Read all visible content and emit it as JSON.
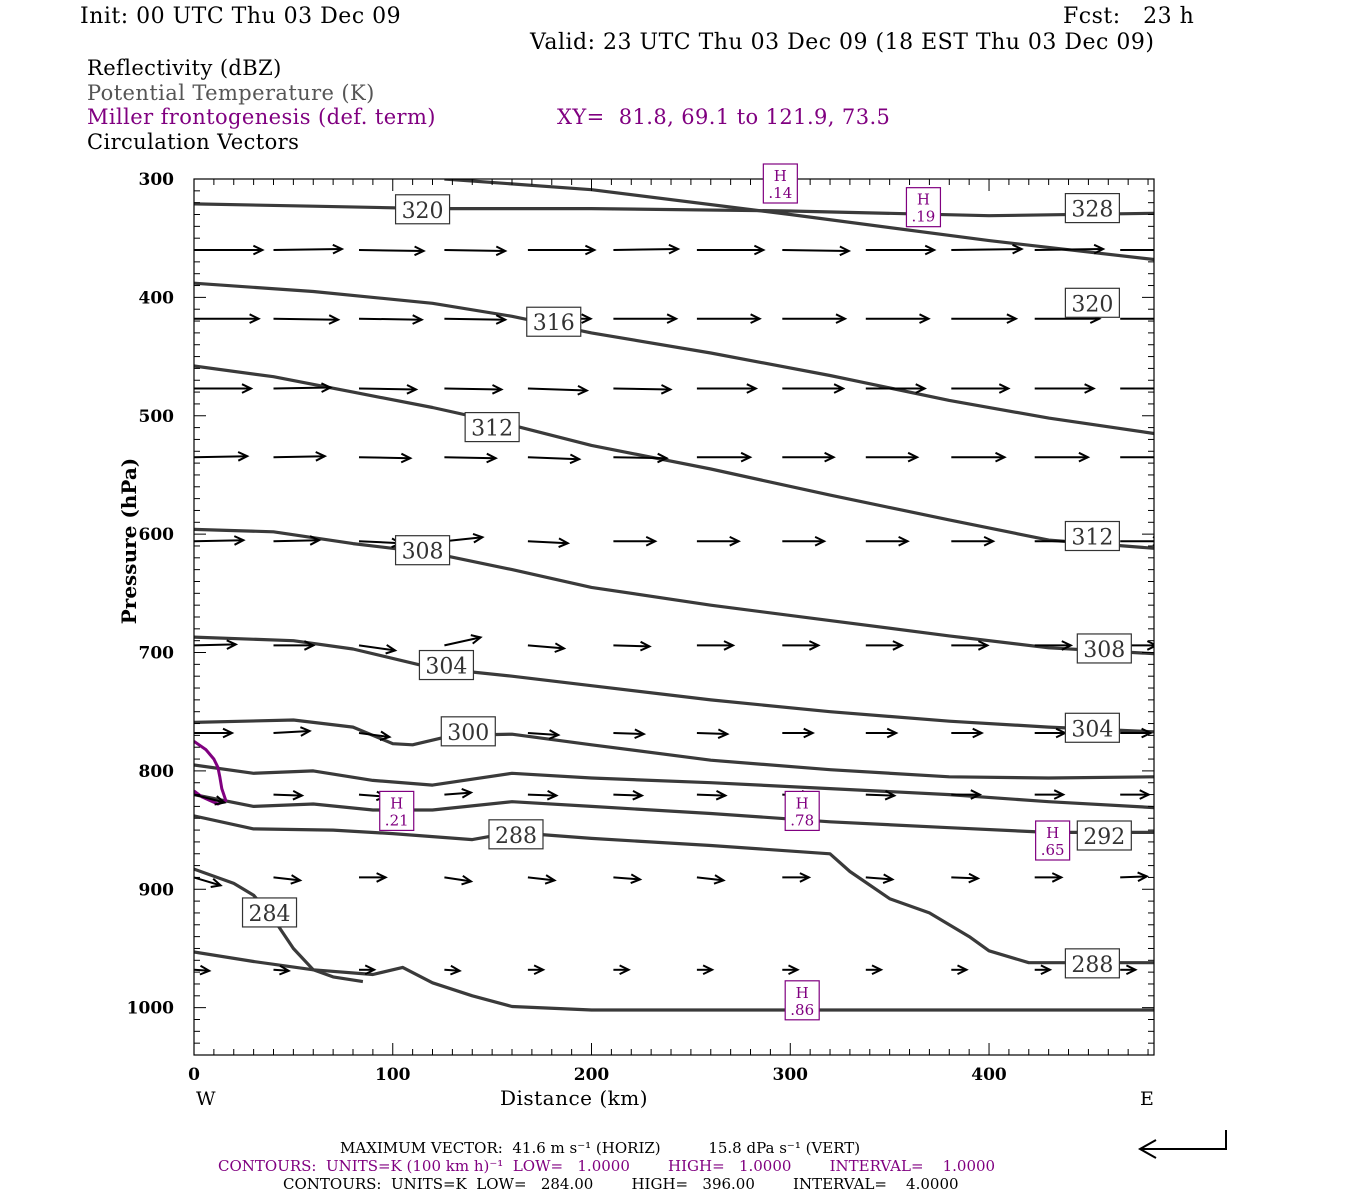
{
  "header": {
    "init": "Init: 00 UTC Thu 03 Dec 09",
    "fcst": "Fcst:   23 h",
    "valid": "Valid: 23 UTC Thu 03 Dec 09 (18 EST Thu 03 Dec 09)"
  },
  "fields": {
    "reflectivity": "Reflectivity (dBZ)",
    "potential_temperature": "Potential Temperature (K)",
    "frontogenesis": "Miller frontogenesis (def. term)",
    "xy": "XY=  81.8, 69.1 to 121.9, 73.5",
    "circulation": "Circulation Vectors"
  },
  "footer": {
    "max_vector": "MAXIMUM VECTOR:  41.6 m s⁻¹ (HORIZ)          15.8 dPa s⁻¹ (VERT)",
    "contours_fronto": "CONTOURS:  UNITS=K (100 km h)⁻¹  LOW=   1.0000        HIGH=   1.0000        INTERVAL=    1.0000",
    "contours_theta": "CONTOURS:  UNITS=K  LOW=   284.00        HIGH=   396.00        INTERVAL=    4.0000"
  },
  "colors": {
    "theta": "#3a3a3a",
    "fronto": "#800080",
    "vectors": "#000000",
    "field_potential": "#555555"
  },
  "chart_data": {
    "type": "line",
    "title": "",
    "xlabel": "Distance (km)",
    "ylabel": "Pressure (hPa)",
    "xlim": [
      0,
      483
    ],
    "ylim": [
      1040,
      300
    ],
    "x_ticks": [
      0,
      100,
      200,
      300,
      400
    ],
    "y_ticks": [
      300,
      400,
      500,
      600,
      700,
      800,
      900,
      1000
    ],
    "x_end_labels": [
      "W",
      "E"
    ],
    "theta_labels": [
      {
        "text": "320",
        "x": 115,
        "y": 326
      },
      {
        "text": "328",
        "x": 452,
        "y": 325
      },
      {
        "text": "320",
        "x": 452,
        "y": 405
      },
      {
        "text": "316",
        "x": 181,
        "y": 421
      },
      {
        "text": "312",
        "x": 150,
        "y": 510
      },
      {
        "text": "312",
        "x": 452,
        "y": 602
      },
      {
        "text": "308",
        "x": 115,
        "y": 614
      },
      {
        "text": "308",
        "x": 458,
        "y": 697
      },
      {
        "text": "304",
        "x": 127,
        "y": 711
      },
      {
        "text": "304",
        "x": 452,
        "y": 764
      },
      {
        "text": "300",
        "x": 138,
        "y": 767
      },
      {
        "text": "288",
        "x": 162,
        "y": 854
      },
      {
        "text": "292",
        "x": 458,
        "y": 855
      },
      {
        "text": "284",
        "x": 38,
        "y": 920
      },
      {
        "text": "288",
        "x": 452,
        "y": 963
      }
    ],
    "theta_contours": [
      {
        "x": [
          126,
          200,
          300,
          400,
          483
        ],
        "y": [
          300,
          309,
          330,
          352,
          368
        ]
      },
      {
        "x": [
          0,
          60,
          120,
          200,
          300,
          400,
          483
        ],
        "y": [
          321,
          323,
          325,
          325,
          327,
          331,
          329
        ]
      },
      {
        "x": [
          0,
          60,
          120,
          160,
          200,
          260,
          320,
          380,
          430,
          483
        ],
        "y": [
          388,
          395,
          405,
          416,
          430,
          447,
          466,
          487,
          502,
          515
        ]
      },
      {
        "x": [
          0,
          40,
          80,
          120,
          160,
          200,
          260,
          320,
          380,
          430,
          483
        ],
        "y": [
          458,
          467,
          480,
          493,
          508,
          525,
          545,
          567,
          588,
          605,
          612
        ]
      },
      {
        "x": [
          0,
          40,
          80,
          120,
          160,
          200,
          260,
          320,
          380,
          430,
          483
        ],
        "y": [
          596,
          598,
          608,
          616,
          630,
          645,
          660,
          673,
          686,
          696,
          701
        ]
      },
      {
        "x": [
          0,
          50,
          80,
          120,
          160,
          200,
          260,
          320,
          380,
          430,
          483
        ],
        "y": [
          687,
          690,
          697,
          713,
          720,
          728,
          740,
          750,
          758,
          763,
          767
        ]
      },
      {
        "x": [
          0,
          50,
          80,
          100,
          110,
          130,
          160,
          200,
          260,
          320,
          380,
          430,
          483
        ],
        "y": [
          759,
          757,
          763,
          777,
          778,
          770,
          769,
          778,
          791,
          799,
          805,
          806,
          805
        ]
      },
      {
        "x": [
          0,
          30,
          60,
          90,
          120,
          160,
          200,
          260,
          320,
          380,
          430,
          483
        ],
        "y": [
          795,
          802,
          800,
          808,
          812,
          802,
          806,
          810,
          815,
          820,
          826,
          831
        ]
      },
      {
        "x": [
          0,
          30,
          60,
          90,
          120,
          160,
          200,
          260,
          320,
          380,
          430,
          483
        ],
        "y": [
          820,
          830,
          828,
          833,
          833,
          826,
          830,
          836,
          843,
          848,
          852,
          852
        ]
      },
      {
        "x": [
          0,
          30,
          70,
          100,
          140,
          160,
          200,
          260,
          320,
          330,
          350,
          370,
          390,
          400,
          420,
          483
        ],
        "y": [
          838,
          849,
          850,
          853,
          858,
          852,
          857,
          863,
          870,
          885,
          908,
          920,
          940,
          952,
          962,
          962
        ]
      },
      {
        "x": [
          0,
          20,
          30,
          40,
          50,
          60,
          70,
          85
        ],
        "y": [
          883,
          895,
          905,
          925,
          950,
          968,
          974,
          978
        ]
      },
      {
        "x": [
          0,
          30,
          60,
          90,
          105,
          120,
          140,
          160,
          200,
          300,
          400,
          483
        ],
        "y": [
          953,
          961,
          968,
          972,
          966,
          979,
          990,
          999,
          1002,
          1002,
          1002,
          1002
        ]
      }
    ],
    "fronto_contour": {
      "x": [
        0,
        6,
        10,
        12,
        13,
        14,
        16,
        12,
        8,
        4,
        0
      ],
      "y": [
        775,
        782,
        790,
        797,
        805,
        815,
        825,
        828,
        825,
        822,
        817
      ]
    },
    "fronto_labels": [
      {
        "text": "H",
        "value": ".14",
        "x": 295,
        "y": 300
      },
      {
        "text": "H",
        "value": ".19",
        "x": 367,
        "y": 320
      },
      {
        "text": "H",
        "value": ".21",
        "x": 102,
        "y": 830
      },
      {
        "text": "H",
        "value": ".78",
        "x": 306,
        "y": 830
      },
      {
        "text": "H",
        "value": ".65",
        "x": 432,
        "y": 855
      },
      {
        "text": "H",
        "value": ".86",
        "x": 306,
        "y": 990
      }
    ],
    "vectors": [
      {
        "y": 360,
        "x": [
          0,
          40,
          83,
          126,
          168,
          211,
          253,
          296,
          338,
          381,
          423,
          466
        ],
        "u": [
          36,
          36,
          34,
          32,
          35,
          34,
          35,
          35,
          36,
          37,
          36,
          35
        ],
        "v": [
          0,
          -1,
          1,
          1,
          0,
          -1,
          0,
          1,
          0,
          -1,
          -1,
          0
        ]
      },
      {
        "y": 418,
        "x": [
          0,
          40,
          83,
          126,
          168,
          211,
          253,
          296,
          338,
          381,
          423,
          466
        ],
        "u": [
          34,
          34,
          33,
          32,
          33,
          33,
          33,
          33,
          33,
          34,
          34,
          32
        ],
        "v": [
          0,
          1,
          1,
          1,
          0,
          0,
          0,
          0,
          0,
          0,
          0,
          0
        ]
      },
      {
        "y": 477,
        "x": [
          0,
          40,
          83,
          126,
          168,
          211,
          253,
          296,
          338,
          381,
          423,
          466
        ],
        "u": [
          30,
          30,
          30,
          30,
          31,
          30,
          31,
          32,
          31,
          30,
          31,
          30
        ],
        "v": [
          0,
          -1,
          1,
          1,
          2,
          1,
          0,
          0,
          0,
          0,
          0,
          0
        ]
      },
      {
        "y": 535,
        "x": [
          0,
          40,
          83,
          126,
          168,
          211,
          253,
          296,
          338,
          381,
          423,
          466
        ],
        "u": [
          28,
          27,
          27,
          27,
          27,
          28,
          28,
          27,
          27,
          28,
          28,
          28
        ],
        "v": [
          -1,
          -1,
          1,
          1,
          2,
          1,
          0,
          0,
          0,
          0,
          0,
          0
        ]
      },
      {
        "y": 606,
        "x": [
          0,
          40,
          83,
          126,
          168,
          211,
          253,
          296,
          338,
          381,
          423,
          466
        ],
        "u": [
          26,
          24,
          22,
          20,
          21,
          22,
          22,
          22,
          22,
          22,
          22,
          22
        ],
        "v": [
          -1,
          -1,
          2,
          -4,
          2,
          0,
          0,
          0,
          0,
          0,
          0,
          0
        ]
      },
      {
        "y": 694,
        "x": [
          0,
          40,
          83,
          126,
          168,
          211,
          253,
          296,
          338,
          381,
          423,
          466
        ],
        "u": [
          22,
          21,
          19,
          19,
          19,
          19,
          19,
          19,
          19,
          19,
          19,
          19
        ],
        "v": [
          -1,
          0,
          5,
          -8,
          3,
          1,
          0,
          0,
          0,
          0,
          0,
          0
        ]
      },
      {
        "y": 768,
        "x": [
          0,
          40,
          83,
          126,
          168,
          211,
          253,
          296,
          338,
          381,
          423,
          466
        ],
        "u": [
          20,
          19,
          16,
          16,
          16,
          16,
          16,
          16,
          16,
          16,
          16,
          16
        ],
        "v": [
          0,
          -2,
          4,
          -5,
          2,
          1,
          1,
          0,
          0,
          0,
          0,
          0
        ]
      },
      {
        "y": 820,
        "x": [
          0,
          40,
          83,
          126,
          168,
          211,
          253,
          296,
          338,
          381,
          423,
          466
        ],
        "u": [
          16,
          15,
          14,
          14,
          15,
          15,
          15,
          15,
          15,
          15,
          15,
          15
        ],
        "v": [
          8,
          1,
          2,
          -2,
          1,
          1,
          1,
          1,
          1,
          0,
          0,
          0
        ]
      },
      {
        "y": 890,
        "x": [
          0,
          40,
          83,
          126,
          168,
          211,
          253,
          296,
          338,
          381,
          423,
          466
        ],
        "u": [
          14,
          14,
          14,
          14,
          14,
          14,
          14,
          14,
          14,
          14,
          14,
          14
        ],
        "v": [
          8,
          3,
          0,
          4,
          3,
          2,
          3,
          0,
          2,
          1,
          0,
          -1
        ]
      },
      {
        "y": 968,
        "x": [
          0,
          40,
          83,
          126,
          168,
          211,
          253,
          296,
          338,
          381,
          423,
          466
        ],
        "u": [
          8,
          8,
          8,
          8,
          8,
          8,
          8,
          8,
          8,
          8,
          8,
          8
        ],
        "v": [
          1,
          1,
          0,
          1,
          0,
          0,
          0,
          0,
          0,
          0,
          0,
          0
        ]
      }
    ]
  }
}
